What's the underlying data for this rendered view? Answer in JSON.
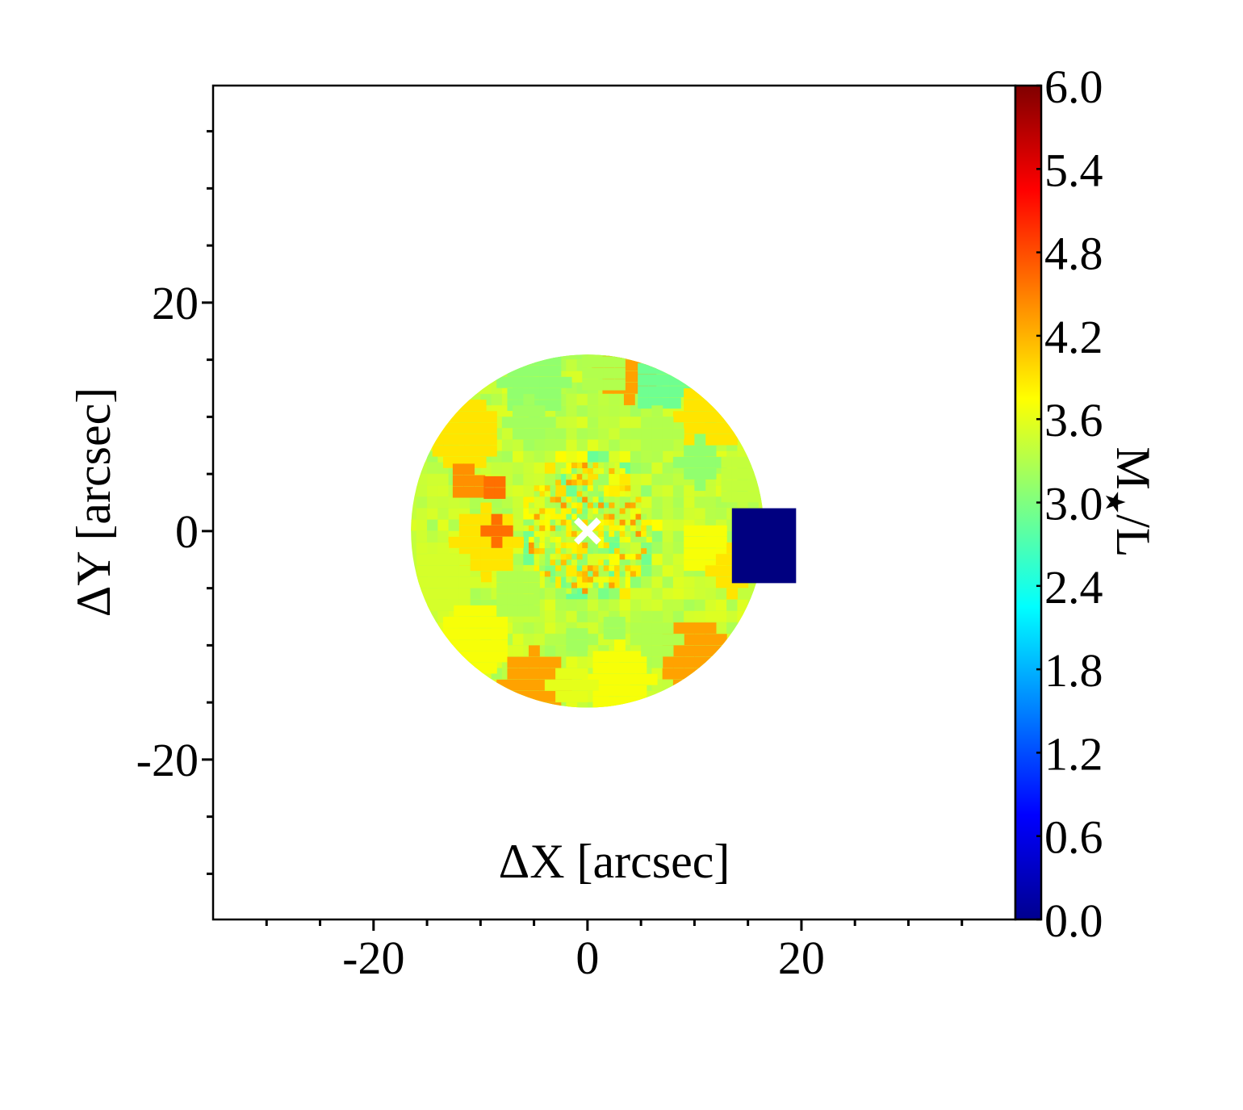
{
  "chart_data": {
    "type": "heatmap",
    "title": "",
    "xlabel": "ΔX [arcsec]",
    "ylabel": "ΔY [arcsec]",
    "xlim": [
      -35,
      40
    ],
    "ylim": [
      -34,
      39
    ],
    "x_ticks": [
      -20,
      0,
      20
    ],
    "y_ticks": [
      20,
      0,
      -20
    ],
    "x_tick_labels": [
      "-20",
      "0",
      "20"
    ],
    "y_tick_labels": [
      "20",
      "0",
      "-20"
    ],
    "colorbar": {
      "label": "M★/L",
      "label_main": "M",
      "label_star": "★",
      "label_tail": "/L",
      "range": [
        0.0,
        6.0
      ],
      "ticks": [
        0.0,
        0.6,
        1.2,
        1.8,
        2.4,
        3.0,
        3.6,
        4.2,
        4.8,
        5.4,
        6.0
      ],
      "tick_labels": [
        "0.0",
        "0.6",
        "1.2",
        "1.8",
        "2.4",
        "3.0",
        "3.6",
        "4.2",
        "4.8",
        "5.4",
        "6.0"
      ],
      "colormap": "jet"
    },
    "field_radius_arcsec": 16.5,
    "center_marker": {
      "x": 0,
      "y": 0,
      "symbol": "×",
      "color": "#ffffff"
    },
    "background_value": 3.4,
    "regions": [
      {
        "x": 3.4,
        "y": 14,
        "r": 3.0,
        "value": 4.3
      },
      {
        "x": 6.5,
        "y": 12.5,
        "r": 2.8,
        "value": 2.9
      },
      {
        "x": -5.5,
        "y": 12.5,
        "r": 3.0,
        "value": 3.1
      },
      {
        "x": 1,
        "y": 13.8,
        "r": 2.5,
        "value": 3.3
      },
      {
        "x": 11,
        "y": 9.5,
        "r": 3.0,
        "value": 3.9
      },
      {
        "x": -12,
        "y": 8,
        "r": 3.5,
        "value": 3.9
      },
      {
        "x": -6,
        "y": 9,
        "r": 2.0,
        "value": 3.2
      },
      {
        "x": 10,
        "y": 5.5,
        "r": 2.0,
        "value": 3.1
      },
      {
        "x": 6,
        "y": 8,
        "r": 2.0,
        "value": 3.3
      },
      {
        "x": -12,
        "y": 3.5,
        "r": 1.6,
        "value": 4.4
      },
      {
        "x": -9.5,
        "y": 3,
        "r": 1.2,
        "value": 4.6
      },
      {
        "x": -10,
        "y": -1.5,
        "r": 3.0,
        "value": 3.9
      },
      {
        "x": -9,
        "y": -0.5,
        "r": 1.0,
        "value": 4.6
      },
      {
        "x": 10.5,
        "y": -2,
        "r": 2.5,
        "value": 3.7
      },
      {
        "x": 13,
        "y": -4,
        "r": 2.0,
        "value": 3.9
      },
      {
        "x": -14,
        "y": -5,
        "r": 3.0,
        "value": 3.5
      },
      {
        "x": -11,
        "y": -10,
        "r": 3.5,
        "value": 3.7
      },
      {
        "x": -5.5,
        "y": -14,
        "r": 3.0,
        "value": 4.3
      },
      {
        "x": 9.5,
        "y": -11.5,
        "r": 3.5,
        "value": 4.3
      },
      {
        "x": 2.5,
        "y": -13.5,
        "r": 3.0,
        "value": 3.7
      },
      {
        "x": -2,
        "y": -14,
        "r": 2.0,
        "value": 3.6
      },
      {
        "x": 6,
        "y": -10,
        "r": 2.0,
        "value": 3.3
      },
      {
        "x": -1.5,
        "y": -10,
        "r": 1.5,
        "value": 3.2
      },
      {
        "x": -7,
        "y": -6,
        "r": 2.5,
        "value": 3.3
      },
      {
        "x": 2,
        "y": -9,
        "r": 1.5,
        "value": 3.2
      },
      {
        "x": 14,
        "y": 4,
        "r": 2.5,
        "value": 3.4
      }
    ],
    "outlier_region": {
      "x_range": [
        13.5,
        19.5
      ],
      "y_range": [
        -5,
        2
      ],
      "value": 0.0
    },
    "center_small_bins_range": [
      3.0,
      4.4
    ]
  }
}
